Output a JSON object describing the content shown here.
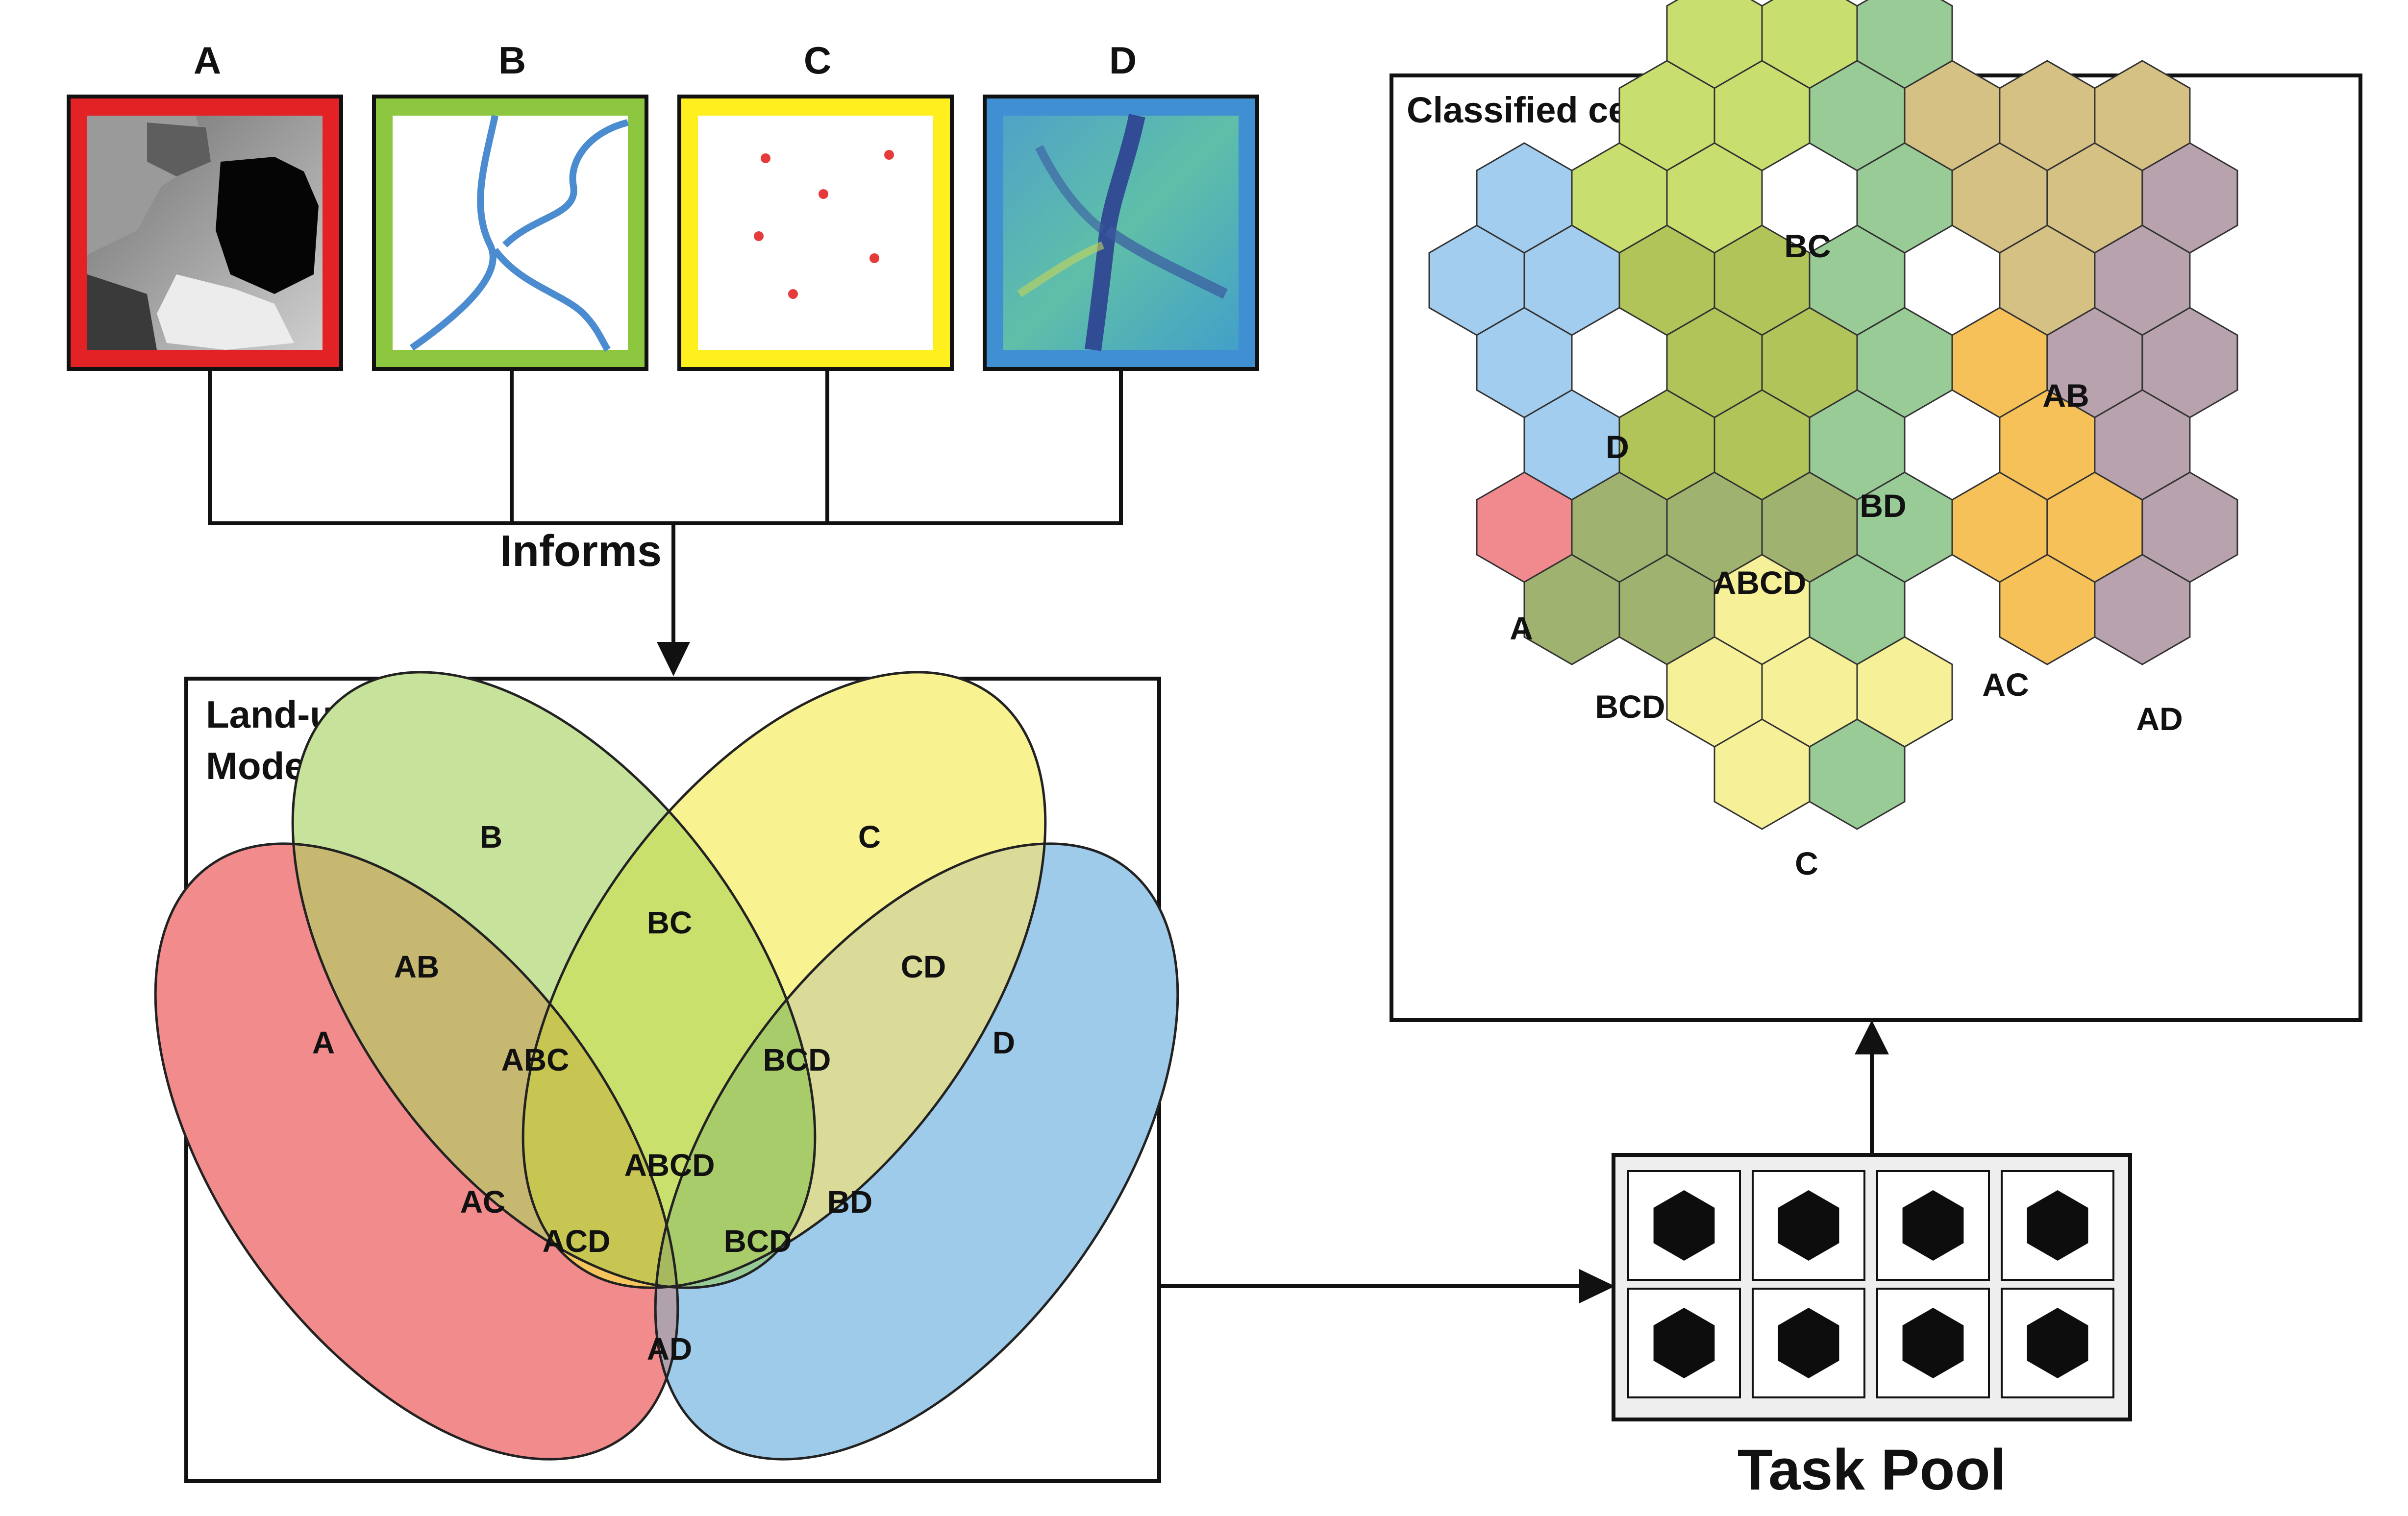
{
  "layers": [
    {
      "key": "A",
      "label": "A",
      "border_color": "#e32226"
    },
    {
      "key": "B",
      "label": "B",
      "border_color": "#8dc63f"
    },
    {
      "key": "C",
      "label": "C",
      "border_color": "#ffef1f"
    },
    {
      "key": "D",
      "label": "D",
      "border_color": "#3f8fd2"
    }
  ],
  "informs_label": "Informs",
  "model": {
    "title_line1": "Land-use",
    "title_line2": "Model",
    "ellipse_colors": {
      "A": "#f28b8b",
      "B": "#c6e29b",
      "C": "#f8f291",
      "D": "#9fcbea"
    },
    "regions": [
      "A",
      "B",
      "C",
      "D",
      "AB",
      "BC",
      "CD",
      "ABC",
      "BCD",
      "AC",
      "ABCD",
      "BD",
      "ACD",
      "BCD",
      "AD"
    ]
  },
  "task_pool": {
    "label": "Task Pool",
    "tasks": 8
  },
  "classified": {
    "title": "Classified cells",
    "regions": [
      {
        "label": "BC",
        "color": "#c8de6e"
      },
      {
        "label": "D",
        "color": "#a3cdee"
      },
      {
        "label": "AB",
        "color": "#d6c184"
      },
      {
        "label": "BD",
        "color": "#99cb97"
      },
      {
        "label": "ABCD",
        "color": "#b0c45a"
      },
      {
        "label": "A",
        "color": "#f08a8e"
      },
      {
        "label": "BCD",
        "color": "#9fb26f"
      },
      {
        "label": "AC",
        "color": "#f7c15a"
      },
      {
        "label": "AD",
        "color": "#b7a2ae"
      },
      {
        "label": "C",
        "color": "#f6f099"
      }
    ]
  }
}
